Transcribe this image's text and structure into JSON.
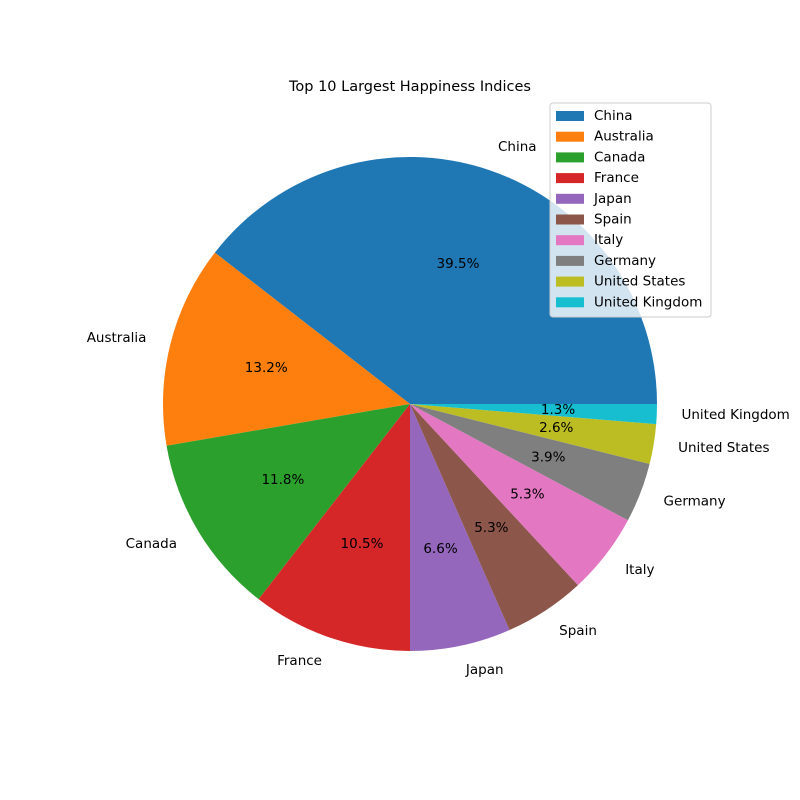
{
  "chart_data": {
    "type": "pie",
    "title": "Top 10 Largest Happiness Indices",
    "start_angle_deg": 0,
    "direction": "counterclockwise",
    "legend_position": "upper right",
    "slices": [
      {
        "label": "China",
        "value": 39.5,
        "pct_label": "39.5%",
        "color": "#1f77b4"
      },
      {
        "label": "Australia",
        "value": 13.2,
        "pct_label": "13.2%",
        "color": "#ff7f0e"
      },
      {
        "label": "Canada",
        "value": 11.8,
        "pct_label": "11.8%",
        "color": "#2ca02c"
      },
      {
        "label": "France",
        "value": 10.5,
        "pct_label": "10.5%",
        "color": "#d62728"
      },
      {
        "label": "Japan",
        "value": 6.6,
        "pct_label": "6.6%",
        "color": "#9467bd"
      },
      {
        "label": "Spain",
        "value": 5.3,
        "pct_label": "5.3%",
        "color": "#8c564b"
      },
      {
        "label": "Italy",
        "value": 5.3,
        "pct_label": "5.3%",
        "color": "#e377c2"
      },
      {
        "label": "Germany",
        "value": 3.9,
        "pct_label": "3.9%",
        "color": "#7f7f7f"
      },
      {
        "label": "United States",
        "value": 2.6,
        "pct_label": "2.6%",
        "color": "#bcbd22"
      },
      {
        "label": "United Kingdom",
        "value": 1.3,
        "pct_label": "1.3%",
        "color": "#17becf"
      }
    ]
  }
}
